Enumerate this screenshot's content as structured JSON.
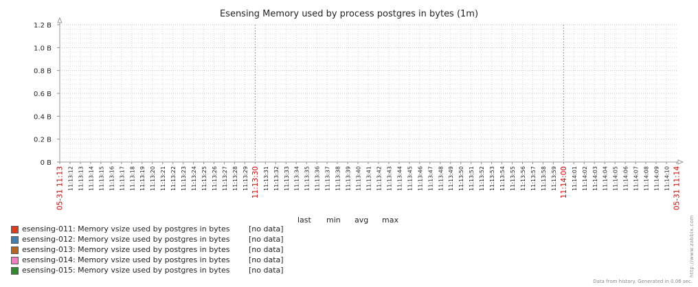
{
  "chart_data": {
    "type": "line",
    "title": "Esensing Memory used by process postgres in bytes (1m)",
    "y_tick_labels": [
      "0 B",
      "0.2 B",
      "0.4 B",
      "0.6 B",
      "0.8 B",
      "1.0 B",
      "1.2 B"
    ],
    "y_ticks": [
      0,
      0.2,
      0.4,
      0.6,
      0.8,
      1.0,
      1.2
    ],
    "ylim": [
      0,
      1.2
    ],
    "x_tick_labels": [
      "05-31 11:13",
      "11:13:12",
      "11:13:13",
      "11:13:14",
      "11:13:15",
      "11:13:16",
      "11:13:17",
      "11:13:18",
      "11:13:19",
      "11:13:20",
      "11:13:21",
      "11:13:22",
      "11:13:23",
      "11:13:24",
      "11:13:25",
      "11:13:26",
      "11:13:27",
      "11:13:28",
      "11:13:29",
      "11:13:30",
      "11:13:31",
      "11:13:32",
      "11:13:33",
      "11:13:34",
      "11:13:35",
      "11:13:36",
      "11:13:37",
      "11:13:38",
      "11:13:39",
      "11:13:40",
      "11:13:41",
      "11:13:42",
      "11:13:43",
      "11:13:44",
      "11:13:45",
      "11:13:46",
      "11:13:47",
      "11:13:48",
      "11:13:49",
      "11:13:50",
      "11:13:51",
      "11:13:52",
      "11:13:53",
      "11:13:54",
      "11:13:55",
      "11:13:56",
      "11:13:57",
      "11:13:58",
      "11:13:59",
      "11:14:00",
      "11:14:01",
      "11:14:02",
      "11:14:03",
      "11:14:04",
      "11:14:05",
      "11:14:06",
      "11:14:07",
      "11:14:08",
      "11:14:09",
      "11:14:10",
      "05-31 11:14"
    ],
    "x_highlight_labels": [
      "05-31 11:13",
      "11:13:30",
      "11:14:00",
      "05-31 11:14"
    ],
    "grid": true,
    "series": [
      {
        "name": "esensing-011: Memory vsize used by postgres in bytes",
        "color": "#e03c1e",
        "values": [],
        "status": "[no data]"
      },
      {
        "name": "esensing-012: Memory vsize used by postgres in bytes",
        "color": "#3d7fb1",
        "values": [],
        "status": "[no data]"
      },
      {
        "name": "esensing-013: Memory vsize used by postgres in bytes",
        "color": "#b5651d",
        "values": [],
        "status": "[no data]"
      },
      {
        "name": "esensing-014: Memory vsize used by postgres in bytes",
        "color": "#f07fbf",
        "values": [],
        "status": "[no data]"
      },
      {
        "name": "esensing-015: Memory vsize used by postgres in bytes",
        "color": "#2e8b2e",
        "values": [],
        "status": "[no data]"
      }
    ],
    "legend_columns": [
      "last",
      "min",
      "avg",
      "max"
    ],
    "highlight_color": "#cc0000"
  },
  "footer": "Data from history. Generated in 0.06 sec.",
  "side_url": "http://www.zabbix.com"
}
